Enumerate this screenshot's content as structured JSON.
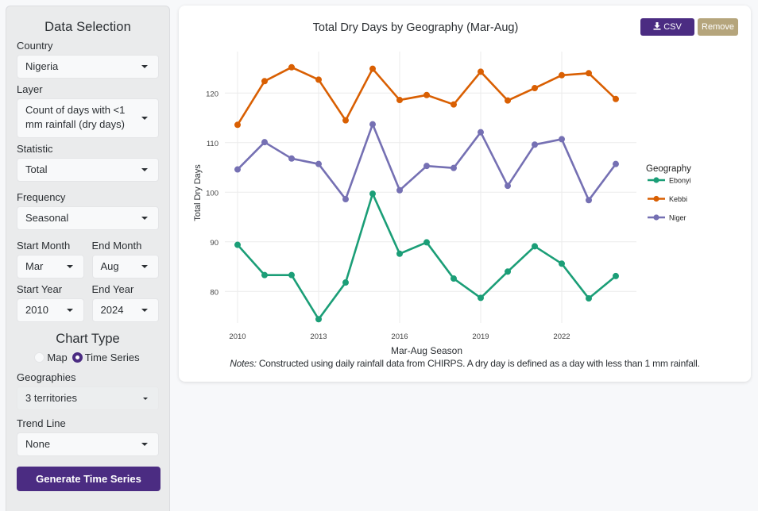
{
  "sidebar": {
    "title": "Data Selection",
    "country": {
      "label": "Country",
      "value": "Nigeria"
    },
    "layer": {
      "label": "Layer",
      "value": "Count of days with <1 mm rainfall (dry days)"
    },
    "statistic": {
      "label": "Statistic",
      "value": "Total"
    },
    "frequency": {
      "label": "Frequency",
      "value": "Seasonal"
    },
    "start_month": {
      "label": "Start Month",
      "value": "Mar"
    },
    "end_month": {
      "label": "End Month",
      "value": "Aug"
    },
    "start_year": {
      "label": "Start Year",
      "value": "2010"
    },
    "end_year": {
      "label": "End Year",
      "value": "2024"
    },
    "chart_type": {
      "title": "Chart Type",
      "options": [
        {
          "label": "Map",
          "selected": false
        },
        {
          "label": "Time Series",
          "selected": true
        }
      ]
    },
    "geographies": {
      "label": "Geographies",
      "value": "3 territories"
    },
    "trend_line": {
      "label": "Trend Line",
      "value": "None"
    },
    "generate_button": "Generate Time Series"
  },
  "card": {
    "csv_button": "CSV",
    "csv_icon": "download-icon",
    "remove_button": "Remove",
    "notes_label": "Notes:",
    "notes_text": " Constructed using daily rainfall data from CHIRPS. A dry day is defined as a day with less than 1 mm rainfall."
  },
  "colors": {
    "primary": "#4b2c82",
    "remove": "#b5a57c",
    "Ebonyi": "#1b9e77",
    "Kebbi": "#d95f02",
    "Niger": "#7570b3"
  },
  "chart_data": {
    "type": "line",
    "title": "Total Dry Days by Geography (Mar-Aug)",
    "xlabel": "Mar-Aug Season",
    "ylabel": "Total Dry Days",
    "x": [
      2010,
      2011,
      2012,
      2013,
      2014,
      2015,
      2016,
      2017,
      2018,
      2019,
      2020,
      2021,
      2022,
      2023,
      2024
    ],
    "x_ticks": [
      2010,
      2013,
      2016,
      2019,
      2022
    ],
    "y_ticks": [
      80,
      90,
      100,
      110,
      120
    ],
    "xlim": [
      2010,
      2024
    ],
    "ylim": [
      73,
      128
    ],
    "grid": true,
    "legend_title": "Geography",
    "legend_position": "right",
    "series": [
      {
        "name": "Ebonyi",
        "values": [
          89.4,
          83.3,
          83.3,
          74.4,
          81.8,
          99.7,
          87.6,
          89.9,
          82.6,
          78.7,
          84.0,
          89.1,
          85.6,
          78.6,
          83.1
        ]
      },
      {
        "name": "Kebbi",
        "values": [
          113.6,
          122.4,
          125.2,
          122.7,
          114.5,
          124.9,
          118.6,
          119.6,
          117.7,
          124.3,
          118.5,
          121.0,
          123.6,
          124.0,
          118.8
        ]
      },
      {
        "name": "Niger",
        "values": [
          104.6,
          110.1,
          106.8,
          105.7,
          98.6,
          113.7,
          100.4,
          105.3,
          104.9,
          112.1,
          101.3,
          109.6,
          110.7,
          98.4,
          105.7
        ]
      }
    ]
  }
}
